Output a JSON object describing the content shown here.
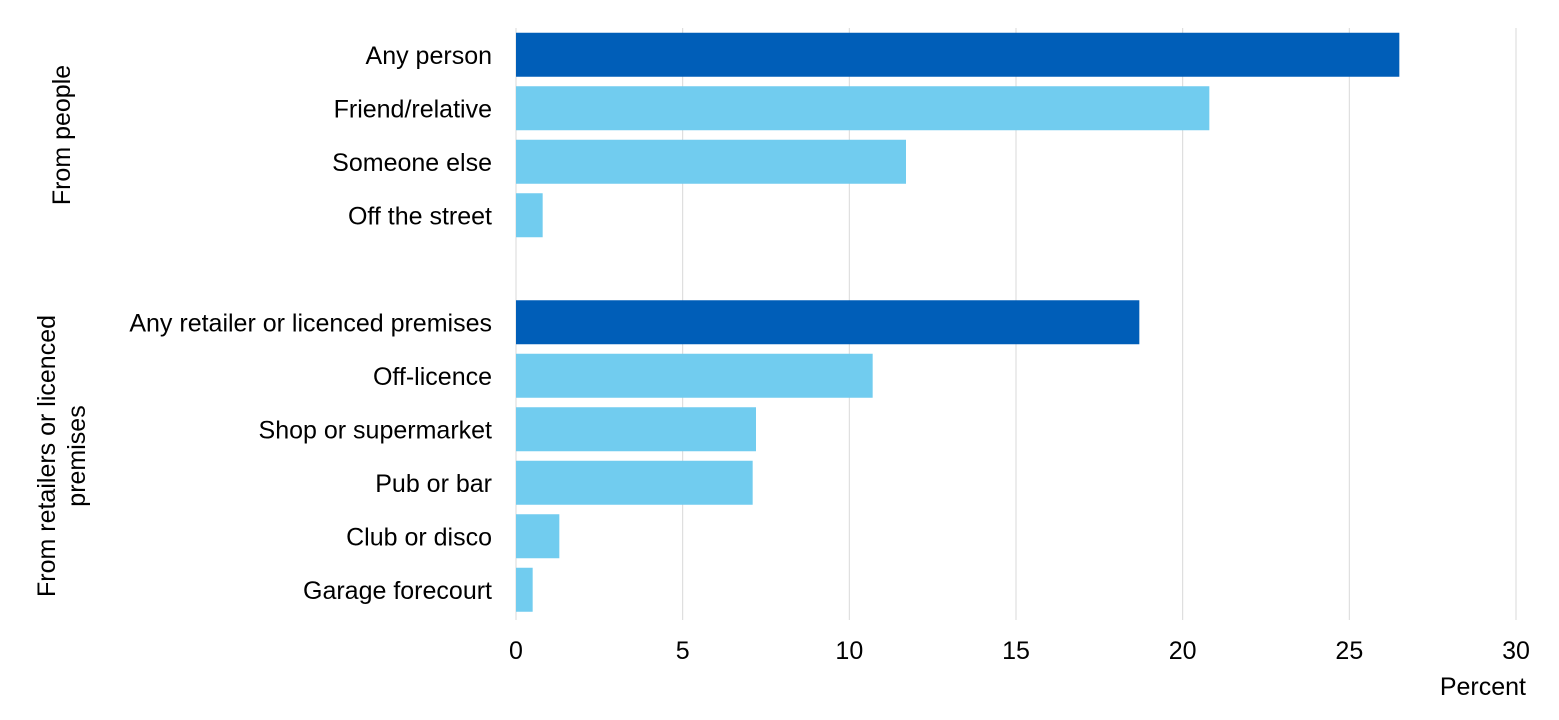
{
  "chart_data": {
    "type": "bar",
    "orientation": "horizontal",
    "title": "",
    "xlabel": "Percent",
    "ylabel": "",
    "xlim": [
      0,
      30
    ],
    "xticks": [
      0,
      5,
      10,
      15,
      20,
      25,
      30
    ],
    "grid": true,
    "legend": "none",
    "colors": {
      "total": "#005EB8",
      "detail": "#71CCEF"
    },
    "groups": [
      {
        "name": "From people",
        "label_lines": [
          "From people"
        ],
        "categories": [
          {
            "label": "Any person",
            "value": 26.5,
            "kind": "total"
          },
          {
            "label": "Friend/relative",
            "value": 20.8,
            "kind": "detail"
          },
          {
            "label": "Someone else",
            "value": 11.7,
            "kind": "detail"
          },
          {
            "label": "Off the street",
            "value": 0.8,
            "kind": "detail"
          }
        ]
      },
      {
        "name": "From retailers or licenced premises",
        "label_lines": [
          "From retailers or licenced",
          "premises"
        ],
        "categories": [
          {
            "label": "Any retailer or licenced premises",
            "value": 18.7,
            "kind": "total"
          },
          {
            "label": "Off-licence",
            "value": 10.7,
            "kind": "detail"
          },
          {
            "label": "Shop or supermarket",
            "value": 7.2,
            "kind": "detail"
          },
          {
            "label": "Pub or bar",
            "value": 7.1,
            "kind": "detail"
          },
          {
            "label": "Club or disco",
            "value": 1.3,
            "kind": "detail"
          },
          {
            "label": "Garage forecourt",
            "value": 0.5,
            "kind": "detail"
          }
        ]
      }
    ]
  }
}
